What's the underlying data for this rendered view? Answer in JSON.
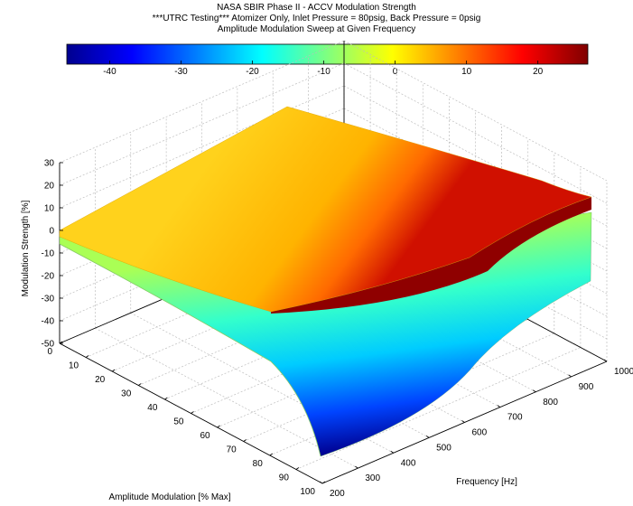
{
  "chart_data": {
    "type": "surface",
    "title": "NASA SBIR Phase II - ACCV Modulation Strength",
    "subtitle": "***UTRC Testing*** Atomizer Only, Inlet Pressure = 80psig, Back Pressure = 0psig",
    "subtitle2": "Amplitude Modulation Sweep at Given Frequency",
    "xlabel": "Amplitude Modulation [% Max]",
    "ylabel": "Frequency [Hz]",
    "zlabel": "Modulation Strength [%]",
    "xlim": [
      0,
      100
    ],
    "ylim": [
      200,
      1000
    ],
    "zlim": [
      -50,
      30
    ],
    "x_ticks": [
      "0",
      "10",
      "20",
      "30",
      "40",
      "50",
      "60",
      "70",
      "80",
      "90",
      "100"
    ],
    "y_ticks": [
      "200",
      "300",
      "400",
      "500",
      "600",
      "700",
      "800",
      "900",
      "1000"
    ],
    "z_ticks": [
      "30",
      "20",
      "10",
      "0",
      "-10",
      "-20",
      "-30",
      "-40",
      "-50"
    ],
    "colorbar": {
      "colormap": "jet",
      "range": [
        -46,
        27
      ],
      "ticks": [
        "-40",
        "-30",
        "-20",
        "-10",
        "0",
        "10",
        "20"
      ]
    },
    "grid": true,
    "surfaces": [
      {
        "name": "",
        "corner_values": {
          "amp0_freq200": 2,
          "amp0_freq1000": 2,
          "amp100_freq1000": 15,
          "amp100_freq200": -24
        }
      },
      {
        "name": "",
        "corner_values": {
          "amp0_freq200": -2,
          "amp0_freq1000": -2,
          "amp100_freq1000": -20,
          "amp100_freq200": -48
        }
      }
    ]
  }
}
